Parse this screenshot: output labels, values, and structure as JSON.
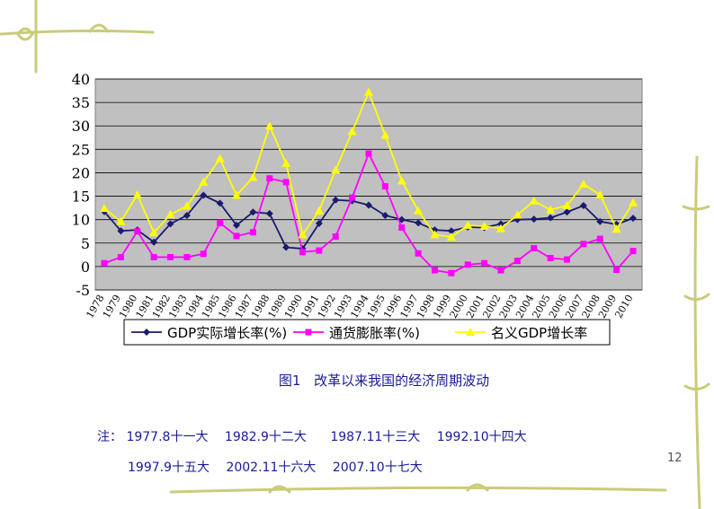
{
  "chart_data": {
    "type": "line",
    "ylim": [
      -5,
      40
    ],
    "yticks": [
      -5,
      0,
      5,
      10,
      15,
      20,
      25,
      30,
      35,
      40
    ],
    "ytick_labels": [
      "-5",
      "0",
      "5",
      "10",
      "15",
      "20",
      "25",
      "30",
      "35",
      "40"
    ],
    "grid": true,
    "legend_position": "bottom",
    "x": [
      "1978",
      "1979",
      "1980",
      "1981",
      "1982",
      "1983",
      "1984",
      "1985",
      "1986",
      "1987",
      "1988",
      "1989",
      "1990",
      "1991",
      "1992",
      "1993",
      "1994",
      "1995",
      "1996",
      "1997",
      "1998",
      "1999",
      "2000",
      "2001",
      "2002",
      "2003",
      "2004",
      "2005",
      "2006",
      "2007",
      "2008",
      "2009",
      "2010"
    ],
    "series": [
      {
        "name": "GDP实际增长率(%)",
        "color": "#1a1a6e",
        "marker": "diamond",
        "values": [
          11.7,
          7.6,
          7.8,
          5.2,
          9.1,
          10.9,
          15.2,
          13.5,
          8.8,
          11.6,
          11.3,
          4.1,
          3.8,
          9.2,
          14.2,
          14.0,
          13.1,
          10.9,
          10.0,
          9.3,
          7.8,
          7.6,
          8.4,
          8.3,
          9.1,
          10.0,
          10.1,
          10.4,
          11.6,
          13.0,
          9.6,
          9.0,
          10.3
        ]
      },
      {
        "name": "通货膨胀率(%)",
        "color": "#ff00ff",
        "marker": "square",
        "values": [
          0.7,
          2.0,
          7.5,
          2.0,
          2.0,
          2.0,
          2.7,
          9.3,
          6.5,
          7.3,
          18.8,
          18.0,
          3.1,
          3.4,
          6.4,
          14.7,
          24.1,
          17.1,
          8.3,
          2.8,
          -0.8,
          -1.4,
          0.4,
          0.7,
          -0.8,
          1.2,
          3.9,
          1.8,
          1.5,
          4.8,
          5.9,
          -0.7,
          3.3
        ]
      },
      {
        "name": "名义GDP增长率",
        "color": "#ffff00",
        "marker": "triangle",
        "values": [
          12.4,
          9.6,
          15.3,
          7.2,
          11.1,
          12.9,
          18.0,
          23.0,
          15.2,
          19.0,
          30.0,
          22.0,
          6.8,
          11.9,
          20.6,
          28.8,
          37.2,
          28.0,
          18.3,
          11.9,
          6.8,
          6.3,
          8.8,
          8.6,
          8.1,
          11.0,
          14.0,
          12.1,
          13.0,
          17.6,
          15.3,
          8.0,
          13.6
        ]
      }
    ]
  },
  "caption": {
    "figure_label": "图1",
    "text": "改革以来我国的经济周期波动"
  },
  "note": {
    "label": "注：",
    "line1": [
      "1977.8十一大",
      "1982.9十二大",
      "1987.11十三大",
      "1992.10十四大"
    ],
    "line2": [
      "1997.9十五大",
      "2002.11十六大",
      "2007.10十七大"
    ]
  },
  "page_number": "12",
  "colors": {
    "plot_background": "#c0c0c0",
    "text_accent": "#1a1a99",
    "decoration": "#c9cc7a"
  }
}
